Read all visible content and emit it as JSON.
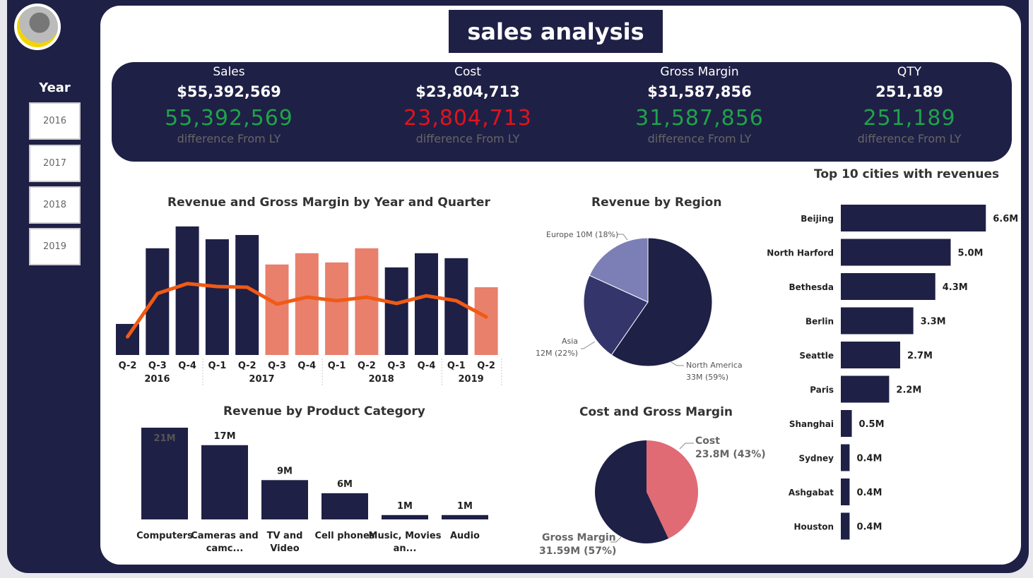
{
  "title": "sales analysis",
  "slicer": {
    "label": "Year",
    "options": [
      "2016",
      "2017",
      "2018",
      "2019"
    ]
  },
  "kpis": [
    {
      "name": "Sales",
      "value": "$55,392,569",
      "diff": "55,392,569",
      "diff_color": "#1fa34a",
      "sub": "difference From LY"
    },
    {
      "name": "Cost",
      "value": "$23,804,713",
      "diff": "23,804,713",
      "diff_color": "#e0141e",
      "sub": "difference From LY"
    },
    {
      "name": "Gross Margin",
      "value": "$31,587,856",
      "diff": "31,587,856",
      "diff_color": "#1fa34a",
      "sub": "difference From LY"
    },
    {
      "name": "QTY",
      "value": "251,189",
      "diff": "251,189",
      "diff_color": "#1fa34a",
      "sub": "difference From LY"
    }
  ],
  "colors": {
    "navy": "#1f2046",
    "salmon": "#e8806c",
    "line": "#f05a14",
    "pink": "#e06b74",
    "europe": "#7b7fb5",
    "asia": "#34356a"
  },
  "chart_data": [
    {
      "type": "bar",
      "title": "Revenue and Gross Margin by Year and Quarter",
      "categories": [
        "Q-2",
        "Q-3",
        "Q-4",
        "Q-1",
        "Q-2",
        "Q-3",
        "Q-4",
        "Q-1",
        "Q-2",
        "Q-3",
        "Q-4",
        "Q-1",
        "Q-2"
      ],
      "years": [
        {
          "label": "2016",
          "span": 3
        },
        {
          "label": "2017",
          "span": 4
        },
        {
          "label": "2018",
          "span": 4
        },
        {
          "label": "2019",
          "span": 2
        }
      ],
      "bar_highlight": [
        false,
        false,
        false,
        false,
        false,
        true,
        true,
        true,
        true,
        false,
        false,
        false,
        true
      ],
      "series": [
        {
          "type": "bar",
          "values": [
            1.38,
            4.74,
            5.71,
            5.14,
            5.33,
            4.02,
            4.52,
            4.11,
            4.74,
            3.89,
            4.52,
            4.3,
            3.01
          ]
        },
        {
          "type": "line",
          "values": [
            0.81,
            2.73,
            3.17,
            3.04,
            3.01,
            2.26,
            2.57,
            2.41,
            2.57,
            2.29,
            2.63,
            2.41,
            1.69
          ]
        }
      ]
    },
    {
      "type": "pie",
      "title": "Revenue by Region",
      "slices": [
        {
          "label": "North America",
          "value_label": "33M (59%)",
          "value": 59
        },
        {
          "label": "Asia",
          "value_label": "12M (22%)",
          "value": 22
        },
        {
          "label": "Europe",
          "value_label": "10M (18%)",
          "value": 18
        }
      ]
    },
    {
      "type": "bar",
      "title": "Revenue by Product Category",
      "categories": [
        "Computers",
        "Cameras and camc...",
        "TV and Video",
        "Cell phones",
        "Music, Movies an...",
        "Audio"
      ],
      "values": [
        21,
        17,
        9,
        6,
        1,
        1
      ],
      "labels": [
        "21M",
        "17M",
        "9M",
        "6M",
        "1M",
        "1M"
      ]
    },
    {
      "type": "pie",
      "title": "Cost and Gross Margin",
      "slices": [
        {
          "label": "Cost",
          "value_label": "23.8M (43%)",
          "value": 43
        },
        {
          "label": "Gross Margin",
          "value_label": "31.59M (57%)",
          "value": 57
        }
      ]
    },
    {
      "type": "bar",
      "orientation": "horizontal",
      "title": "Top 10 cities with revenues",
      "categories": [
        "Beijing",
        "North Harford",
        "Bethesda",
        "Berlin",
        "Seattle",
        "Paris",
        "Shanghai",
        "Sydney",
        "Ashgabat",
        "Houston"
      ],
      "values": [
        6.6,
        5.0,
        4.3,
        3.3,
        2.7,
        2.2,
        0.5,
        0.4,
        0.4,
        0.4
      ],
      "labels": [
        "6.6M",
        "5.0M",
        "4.3M",
        "3.3M",
        "2.7M",
        "2.2M",
        "0.5M",
        "0.4M",
        "0.4M",
        "0.4M"
      ]
    }
  ]
}
